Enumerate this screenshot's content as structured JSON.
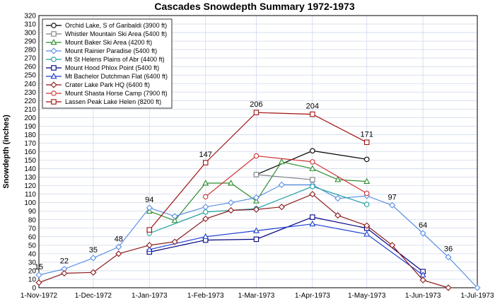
{
  "chart_data": {
    "type": "line",
    "title": "Cascades Snowdepth Summary 1972-1973",
    "ylabel": "Snowdepth (inches)",
    "xlabel": "",
    "ylim": [
      0,
      320
    ],
    "yticks": [
      0,
      10,
      20,
      30,
      40,
      50,
      60,
      70,
      80,
      90,
      100,
      110,
      120,
      130,
      140,
      150,
      160,
      170,
      180,
      190,
      200,
      210,
      220,
      230,
      240,
      250,
      260,
      270,
      280,
      290,
      300,
      310,
      320
    ],
    "xlim": [
      "1972-11-01",
      "1973-07-01"
    ],
    "xticks": [
      {
        "date": "1972-11-01",
        "label": "1-Nov-1972"
      },
      {
        "date": "1972-12-01",
        "label": "1-Dec-1972"
      },
      {
        "date": "1973-01-01",
        "label": "1-Jan-1973"
      },
      {
        "date": "1973-02-01",
        "label": "1-Feb-1973"
      },
      {
        "date": "1973-03-01",
        "label": "1-Mar-1973"
      },
      {
        "date": "1973-04-01",
        "label": "1-Apr-1973"
      },
      {
        "date": "1973-05-01",
        "label": "1-May-1973"
      },
      {
        "date": "1973-06-01",
        "label": "1-Jun-1973"
      },
      {
        "date": "1973-07-01",
        "label": "1-Jul-1973"
      }
    ],
    "grid": true,
    "legend_position": "top-left",
    "series": [
      {
        "name": "Orchid Lake, S of Garibaldi (3900 ft)",
        "color": "#000000",
        "marker": "circle",
        "points": [
          [
            "1973-03-01",
            133
          ],
          [
            "1973-04-01",
            161
          ],
          [
            "1973-05-01",
            151
          ]
        ]
      },
      {
        "name": "Whistler Mountain Ski Area (5400 ft)",
        "color": "#808080",
        "marker": "square",
        "points": [
          [
            "1973-03-01",
            133
          ],
          [
            "1973-04-01",
            127
          ]
        ]
      },
      {
        "name": "Mount Baker Ski Area (4200 ft)",
        "color": "#2e8b2e",
        "marker": "triangle",
        "points": [
          [
            "1973-01-01",
            90
          ],
          [
            "1973-01-15",
            79
          ],
          [
            "1973-02-01",
            123
          ],
          [
            "1973-02-15",
            123
          ],
          [
            "1973-03-01",
            102
          ],
          [
            "1973-03-15",
            148
          ],
          [
            "1973-04-01",
            140
          ],
          [
            "1973-04-15",
            127
          ],
          [
            "1973-05-01",
            125
          ]
        ]
      },
      {
        "name": "Mount Rainier Paradise (5400 ft)",
        "color": "#5b8fe0",
        "marker": "diamond",
        "points": [
          [
            "1972-11-01",
            15
          ],
          [
            "1972-11-15",
            22
          ],
          [
            "1972-12-01",
            35
          ],
          [
            "1972-12-15",
            48
          ],
          [
            "1973-01-01",
            94
          ],
          [
            "1973-01-15",
            84
          ],
          [
            "1973-02-01",
            95
          ],
          [
            "1973-02-15",
            100
          ],
          [
            "1973-03-01",
            106
          ],
          [
            "1973-03-15",
            121
          ],
          [
            "1973-04-01",
            121
          ],
          [
            "1973-04-15",
            105
          ],
          [
            "1973-05-01",
            108
          ],
          [
            "1973-05-15",
            97
          ],
          [
            "1973-06-01",
            64
          ],
          [
            "1973-06-15",
            36
          ],
          [
            "1973-07-01",
            0
          ]
        ]
      },
      {
        "name": "Mt St Helens Plains of Abr (4400 ft)",
        "color": "#20a0a0",
        "marker": "circle",
        "points": [
          [
            "1973-01-01",
            64
          ],
          [
            "1973-02-01",
            89
          ],
          [
            "1973-03-01",
            93
          ],
          [
            "1973-04-01",
            119
          ],
          [
            "1973-05-01",
            98
          ]
        ]
      },
      {
        "name": "Mount Hood Phlox Point (5400 ft)",
        "color": "#000080",
        "marker": "square",
        "points": [
          [
            "1973-01-01",
            42
          ],
          [
            "1973-02-01",
            56
          ],
          [
            "1973-03-01",
            57
          ],
          [
            "1973-04-01",
            83
          ],
          [
            "1973-05-01",
            70
          ],
          [
            "1973-06-01",
            19
          ]
        ]
      },
      {
        "name": "Mt Bachelor Dutchman Flat (6400 ft)",
        "color": "#1f3fd0",
        "marker": "triangle",
        "points": [
          [
            "1973-01-01",
            45
          ],
          [
            "1973-02-01",
            60
          ],
          [
            "1973-03-01",
            67
          ],
          [
            "1973-04-01",
            75
          ],
          [
            "1973-05-01",
            63
          ],
          [
            "1973-06-01",
            15
          ]
        ]
      },
      {
        "name": "Crater Lake Park HQ (6400 ft)",
        "color": "#8b1a1a",
        "marker": "diamond",
        "points": [
          [
            "1972-11-01",
            6
          ],
          [
            "1972-11-15",
            17
          ],
          [
            "1972-12-01",
            18
          ],
          [
            "1972-12-15",
            40
          ],
          [
            "1973-01-01",
            50
          ],
          [
            "1973-01-15",
            54
          ],
          [
            "1973-02-01",
            81
          ],
          [
            "1973-02-15",
            91
          ],
          [
            "1973-03-01",
            92
          ],
          [
            "1973-03-15",
            95
          ],
          [
            "1973-04-01",
            110
          ],
          [
            "1973-04-15",
            85
          ],
          [
            "1973-05-01",
            73
          ],
          [
            "1973-05-15",
            50
          ],
          [
            "1973-06-01",
            9
          ],
          [
            "1973-06-15",
            0
          ]
        ]
      },
      {
        "name": "Mount Shasta Horse Camp (7900 ft)",
        "color": "#d03030",
        "marker": "circle",
        "points": [
          [
            "1973-02-01",
            107
          ],
          [
            "1973-03-01",
            155
          ],
          [
            "1973-04-01",
            148
          ],
          [
            "1973-05-01",
            111
          ]
        ]
      },
      {
        "name": "Lassen Peak Lake Helen (8200 ft)",
        "color": "#a01010",
        "marker": "square",
        "points": [
          [
            "1973-01-01",
            68
          ],
          [
            "1973-02-01",
            147
          ],
          [
            "1973-03-01",
            206
          ],
          [
            "1973-04-01",
            204
          ],
          [
            "1973-05-01",
            171
          ]
        ]
      }
    ],
    "annotations": [
      {
        "date": "1972-11-01",
        "value": 15,
        "text": "15"
      },
      {
        "date": "1972-11-15",
        "value": 22,
        "text": "22"
      },
      {
        "date": "1972-12-01",
        "value": 35,
        "text": "35"
      },
      {
        "date": "1972-12-15",
        "value": 48,
        "text": "48"
      },
      {
        "date": "1973-01-01",
        "value": 94,
        "text": "94"
      },
      {
        "date": "1973-02-01",
        "value": 147,
        "text": "147"
      },
      {
        "date": "1973-03-01",
        "value": 206,
        "text": "206"
      },
      {
        "date": "1973-04-01",
        "value": 204,
        "text": "204"
      },
      {
        "date": "1973-05-01",
        "value": 171,
        "text": "171"
      },
      {
        "date": "1973-05-15",
        "value": 97,
        "text": "97"
      },
      {
        "date": "1973-06-01",
        "value": 64,
        "text": "64"
      },
      {
        "date": "1973-06-15",
        "value": 36,
        "text": "36"
      }
    ]
  }
}
